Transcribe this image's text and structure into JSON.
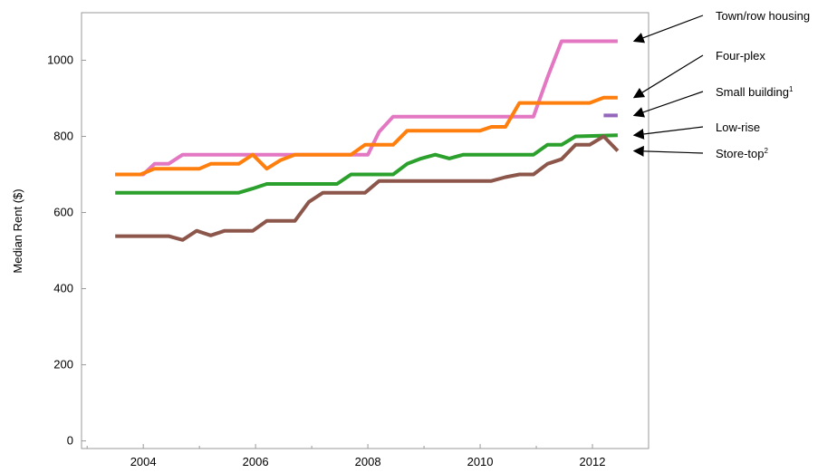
{
  "chart_data": {
    "type": "line",
    "title": "",
    "xlabel": "",
    "ylabel": "Median Rent ($)",
    "xlim": [
      2002.9,
      2013.0
    ],
    "ylim": [
      -20,
      1125
    ],
    "x_ticks": [
      2004,
      2006,
      2008,
      2010,
      2012
    ],
    "y_ticks": [
      0,
      200,
      400,
      600,
      800,
      1000
    ],
    "grid": false,
    "legend": "right, labels with arrows pointing to series line ends",
    "series": [
      {
        "name": "Town/row housing",
        "sup": "",
        "color": "#e377c2",
        "points": [
          [
            2003.5,
            700
          ],
          [
            2004.0,
            700
          ],
          [
            2004.2,
            728
          ],
          [
            2004.45,
            728
          ],
          [
            2004.7,
            752
          ],
          [
            2008.0,
            752
          ],
          [
            2008.2,
            812
          ],
          [
            2008.45,
            852
          ],
          [
            2010.2,
            852
          ],
          [
            2010.95,
            852
          ],
          [
            2011.2,
            955
          ],
          [
            2011.45,
            1050
          ],
          [
            2012.45,
            1050
          ]
        ]
      },
      {
        "name": "Four-plex",
        "sup": "",
        "color": "#ff7f0e",
        "points": [
          [
            2003.5,
            700
          ],
          [
            2003.95,
            700
          ],
          [
            2004.2,
            715
          ],
          [
            2005.0,
            715
          ],
          [
            2005.2,
            728
          ],
          [
            2005.7,
            728
          ],
          [
            2005.95,
            752
          ],
          [
            2006.2,
            715
          ],
          [
            2006.45,
            738
          ],
          [
            2006.7,
            752
          ],
          [
            2007.7,
            752
          ],
          [
            2007.95,
            778
          ],
          [
            2008.45,
            778
          ],
          [
            2008.7,
            815
          ],
          [
            2010.0,
            815
          ],
          [
            2010.2,
            825
          ],
          [
            2010.45,
            825
          ],
          [
            2010.7,
            888
          ],
          [
            2011.95,
            888
          ],
          [
            2012.2,
            902
          ],
          [
            2012.45,
            902
          ]
        ]
      },
      {
        "name": "Small building",
        "sup": "1",
        "color": "#9467bd",
        "points": [
          [
            2012.2,
            855
          ],
          [
            2012.45,
            855
          ]
        ]
      },
      {
        "name": "Low-rise",
        "sup": "",
        "color": "#2ca02c",
        "points": [
          [
            2003.5,
            652
          ],
          [
            2005.7,
            652
          ],
          [
            2005.95,
            663
          ],
          [
            2006.2,
            675
          ],
          [
            2007.45,
            675
          ],
          [
            2007.7,
            700
          ],
          [
            2008.45,
            700
          ],
          [
            2008.7,
            728
          ],
          [
            2008.95,
            742
          ],
          [
            2009.2,
            752
          ],
          [
            2009.45,
            742
          ],
          [
            2009.7,
            752
          ],
          [
            2010.95,
            752
          ],
          [
            2011.2,
            778
          ],
          [
            2011.45,
            778
          ],
          [
            2011.7,
            800
          ],
          [
            2012.45,
            803
          ]
        ]
      },
      {
        "name": "Store-top",
        "sup": "2",
        "color": "#8c564b",
        "points": [
          [
            2003.5,
            538
          ],
          [
            2004.45,
            538
          ],
          [
            2004.7,
            528
          ],
          [
            2004.95,
            552
          ],
          [
            2005.2,
            540
          ],
          [
            2005.45,
            552
          ],
          [
            2005.95,
            552
          ],
          [
            2006.2,
            578
          ],
          [
            2006.7,
            578
          ],
          [
            2006.95,
            628
          ],
          [
            2007.2,
            652
          ],
          [
            2007.95,
            652
          ],
          [
            2008.2,
            683
          ],
          [
            2010.2,
            683
          ],
          [
            2010.45,
            693
          ],
          [
            2010.7,
            700
          ],
          [
            2010.95,
            700
          ],
          [
            2011.2,
            728
          ],
          [
            2011.45,
            740
          ],
          [
            2011.7,
            778
          ],
          [
            2011.95,
            778
          ],
          [
            2012.2,
            800
          ],
          [
            2012.45,
            762
          ]
        ]
      }
    ]
  }
}
